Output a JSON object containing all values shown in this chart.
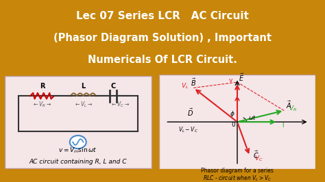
{
  "title_line1": "Lec 07 Series LCR   AC Circuit",
  "title_line2": "(Phasor Diagram Solution) , Important",
  "title_line3": "Numericals Of LCR Circuit.",
  "title_bg": "#c8860a",
  "title_text_color": "#ffffff",
  "circuit_bg": "#f5e6e8",
  "phasor_bg": "#f5e6e8",
  "circuit_caption": "AC circuit containing R, L and C",
  "phasor_caption1": "Phasor diagram for a series",
  "phasor_caption2": "RLC - circuit when VL > VC"
}
